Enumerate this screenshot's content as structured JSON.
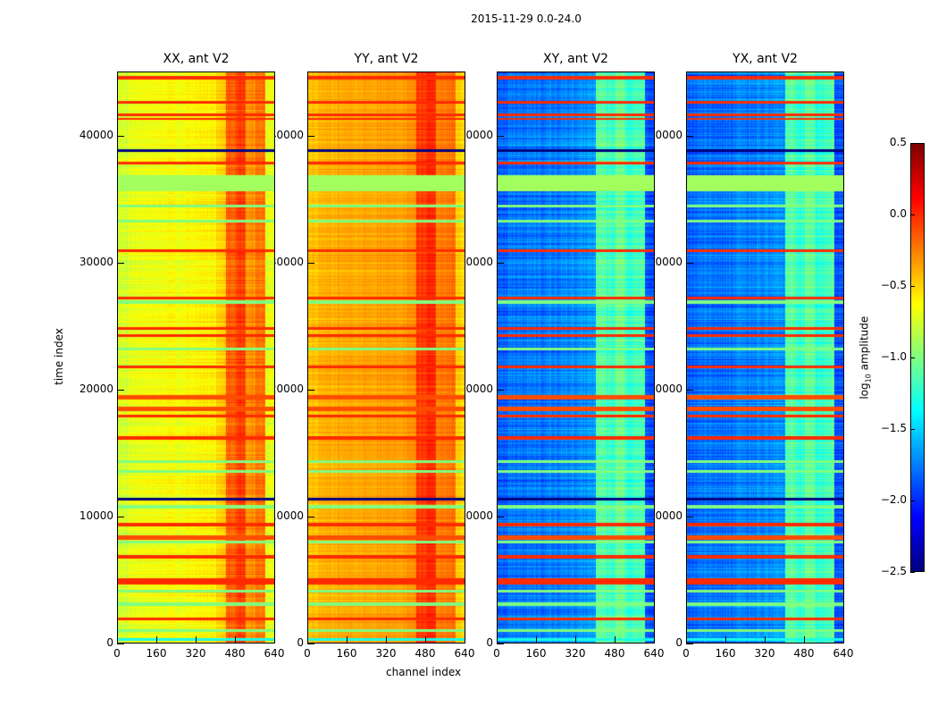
{
  "chart_data": {
    "type": "heatmap",
    "title": "2015-11-29 0.0-24.0",
    "xlabel": "channel index",
    "ylabel": "time index",
    "xlim": [
      0,
      640
    ],
    "ylim": [
      0,
      45100
    ],
    "xticks": [
      "0",
      "160",
      "320",
      "480",
      "640"
    ],
    "xtick_values": [
      0,
      160,
      320,
      480,
      640
    ],
    "yticks": [
      "0",
      "10000",
      "20000",
      "30000",
      "40000"
    ],
    "ytick_values": [
      0,
      10000,
      20000,
      30000,
      40000
    ],
    "channel_bin_width": 40,
    "panels": [
      {
        "title": "XX, ant V2",
        "channel_profile": [
          -0.75,
          -0.7,
          -0.68,
          -0.66,
          -0.65,
          -0.64,
          -0.64,
          -0.63,
          -0.62,
          -0.6,
          -0.5,
          -0.15,
          -0.05,
          -0.3,
          -0.2,
          -0.7
        ],
        "noise": 0.12
      },
      {
        "title": "YY, ant V2",
        "channel_profile": [
          -0.45,
          -0.4,
          -0.4,
          -0.38,
          -0.38,
          -0.37,
          -0.37,
          -0.36,
          -0.35,
          -0.35,
          -0.3,
          -0.05,
          0.0,
          -0.25,
          -0.2,
          -0.5
        ],
        "noise": 0.1
      },
      {
        "title": "XY, ant V2",
        "channel_profile": [
          -1.85,
          -1.8,
          -1.8,
          -1.78,
          -1.78,
          -1.75,
          -1.75,
          -1.72,
          -1.7,
          -1.68,
          -1.1,
          -1.2,
          -1.05,
          -1.25,
          -1.15,
          -1.9
        ],
        "noise": 0.18
      },
      {
        "title": "YX, ant V2",
        "channel_profile": [
          -1.85,
          -1.8,
          -1.8,
          -1.78,
          -1.78,
          -1.75,
          -1.75,
          -1.72,
          -1.7,
          -1.68,
          -1.1,
          -1.2,
          -1.05,
          -1.25,
          -1.15,
          -1.9
        ],
        "noise": 0.18
      }
    ],
    "flagged_bands": [
      {
        "start": 35800,
        "end": 37000,
        "value": -0.9
      },
      {
        "start": 44600,
        "end": 44800,
        "value": 0.0
      },
      {
        "start": 42700,
        "end": 42850,
        "value": 0.0
      },
      {
        "start": 41700,
        "end": 41850,
        "value": 0.0
      },
      {
        "start": 41400,
        "end": 41500,
        "value": 0.0
      },
      {
        "start": 38900,
        "end": 39050,
        "value": -2.5
      },
      {
        "start": 37900,
        "end": 38050,
        "value": 0.0
      },
      {
        "start": 34500,
        "end": 34650,
        "value": -1.0
      },
      {
        "start": 33300,
        "end": 33450,
        "value": -1.0
      },
      {
        "start": 30950,
        "end": 31100,
        "value": 0.0
      },
      {
        "start": 27200,
        "end": 27350,
        "value": 0.0
      },
      {
        "start": 26900,
        "end": 27050,
        "value": -1.0
      },
      {
        "start": 24800,
        "end": 24950,
        "value": 0.0
      },
      {
        "start": 24250,
        "end": 24400,
        "value": 0.0
      },
      {
        "start": 23200,
        "end": 23350,
        "value": -1.0
      },
      {
        "start": 21750,
        "end": 21900,
        "value": 0.0
      },
      {
        "start": 19300,
        "end": 19600,
        "value": -0.1
      },
      {
        "start": 18400,
        "end": 18650,
        "value": -0.1
      },
      {
        "start": 17900,
        "end": 18050,
        "value": 0.0
      },
      {
        "start": 16150,
        "end": 16300,
        "value": 0.0
      },
      {
        "start": 14300,
        "end": 14450,
        "value": -1.0
      },
      {
        "start": 13500,
        "end": 13650,
        "value": -1.0
      },
      {
        "start": 11350,
        "end": 11450,
        "value": -2.5
      },
      {
        "start": 10700,
        "end": 10850,
        "value": -1.0
      },
      {
        "start": 9300,
        "end": 9450,
        "value": 0.0
      },
      {
        "start": 8200,
        "end": 8500,
        "value": -0.1
      },
      {
        "start": 7900,
        "end": 8050,
        "value": -1.0
      },
      {
        "start": 6750,
        "end": 6900,
        "value": 0.0
      },
      {
        "start": 4950,
        "end": 5100,
        "value": 0.0
      },
      {
        "start": 4700,
        "end": 4850,
        "value": 0.0
      },
      {
        "start": 4000,
        "end": 4150,
        "value": -1.0
      },
      {
        "start": 3000,
        "end": 3150,
        "value": -1.0
      },
      {
        "start": 1850,
        "end": 2000,
        "value": 0.0
      },
      {
        "start": 900,
        "end": 1050,
        "value": -1.0
      },
      {
        "start": 200,
        "end": 350,
        "value": -1.3
      }
    ],
    "colorbar": {
      "label_parts": [
        "log",
        "10",
        " amplitude"
      ],
      "range": [
        -2.5,
        0.5
      ],
      "ticks": [
        "0.5",
        "0.0",
        "−0.5",
        "−1.0",
        "−1.5",
        "−2.0",
        "−2.5"
      ],
      "tick_values": [
        0.5,
        0.0,
        -0.5,
        -1.0,
        -1.5,
        -2.0,
        -2.5
      ],
      "colormap": "jet"
    }
  }
}
